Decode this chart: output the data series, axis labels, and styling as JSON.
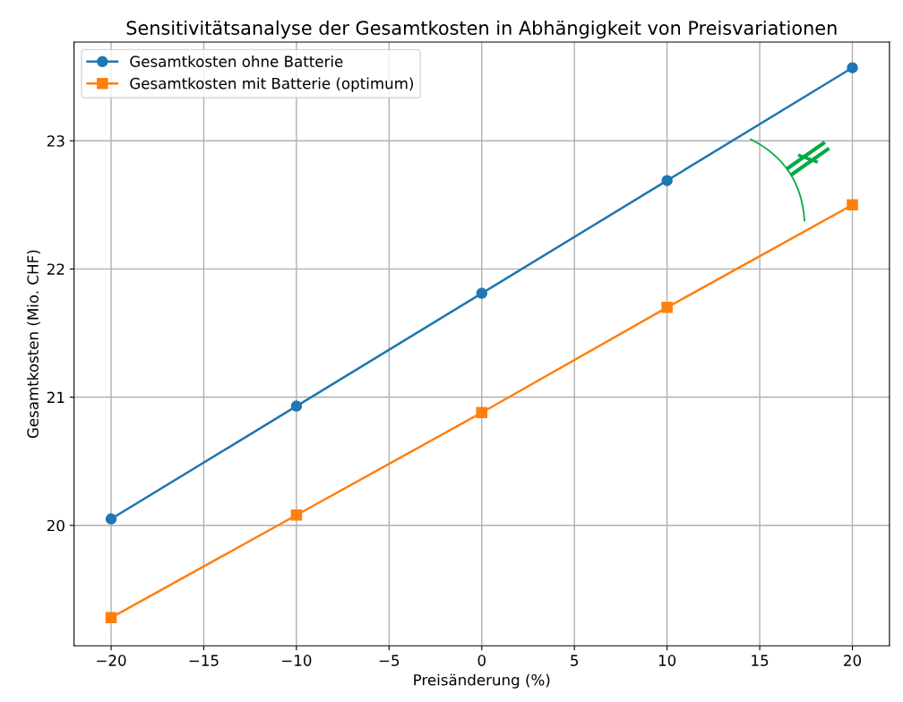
{
  "chart_data": {
    "type": "line",
    "title": "Sensitivitätsanalyse der Gesamtkosten in Abhängigkeit von Preisvariationen",
    "xlabel": "Preisänderung (%)",
    "ylabel": "Gesamtkosten (Mio. CHF)",
    "x": [
      -20,
      -10,
      0,
      10,
      20
    ],
    "series": [
      {
        "name": "Gesamtkosten ohne Batterie",
        "color": "#1f77b4",
        "marker": "circle",
        "values": [
          20.05,
          20.93,
          21.81,
          22.69,
          23.57
        ]
      },
      {
        "name": "Gesamtkosten mit Batterie (optimum)",
        "color": "#ff7f0e",
        "marker": "square",
        "values": [
          19.28,
          20.08,
          20.88,
          21.7,
          22.5
        ]
      }
    ],
    "xlim": [
      -22,
      22
    ],
    "xticks": [
      {
        "value": -20,
        "label": "−20"
      },
      {
        "value": -15,
        "label": "−15"
      },
      {
        "value": -10,
        "label": "−10"
      },
      {
        "value": -5,
        "label": "−5"
      },
      0,
      5,
      10,
      15,
      20
    ],
    "ylim": [
      19.06,
      23.77
    ],
    "yticks": [
      20,
      21,
      22,
      23
    ],
    "annotations": [
      "∦"
    ],
    "grid": true,
    "legend": "top left",
    "line_style": "solid"
  }
}
